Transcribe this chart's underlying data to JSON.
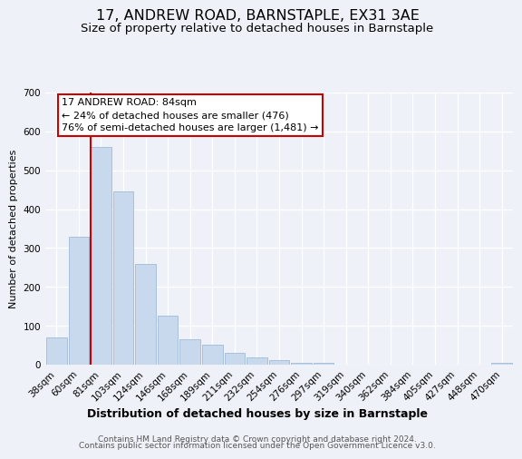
{
  "title": "17, ANDREW ROAD, BARNSTAPLE, EX31 3AE",
  "subtitle": "Size of property relative to detached houses in Barnstaple",
  "xlabel": "Distribution of detached houses by size in Barnstaple",
  "ylabel": "Number of detached properties",
  "bar_labels": [
    "38sqm",
    "60sqm",
    "81sqm",
    "103sqm",
    "124sqm",
    "146sqm",
    "168sqm",
    "189sqm",
    "211sqm",
    "232sqm",
    "254sqm",
    "276sqm",
    "297sqm",
    "319sqm",
    "340sqm",
    "362sqm",
    "384sqm",
    "405sqm",
    "427sqm",
    "448sqm",
    "470sqm"
  ],
  "bar_values": [
    70,
    330,
    560,
    445,
    258,
    125,
    65,
    52,
    30,
    18,
    12,
    5,
    4,
    0,
    0,
    0,
    0,
    0,
    0,
    0,
    5
  ],
  "bar_color": "#c8d9ed",
  "bar_edge_color": "#a8c0da",
  "property_line_index": 2,
  "property_line_color": "#cc0000",
  "annotation_title": "17 ANDREW ROAD: 84sqm",
  "annotation_line1": "← 24% of detached houses are smaller (476)",
  "annotation_line2": "76% of semi-detached houses are larger (1,481) →",
  "annotation_box_color": "#cc0000",
  "ylim": [
    0,
    700
  ],
  "yticks": [
    0,
    100,
    200,
    300,
    400,
    500,
    600,
    700
  ],
  "footer1": "Contains HM Land Registry data © Crown copyright and database right 2024.",
  "footer2": "Contains public sector information licensed under the Open Government Licence v3.0.",
  "background_color": "#eef2f8",
  "plot_background": "#eef2f8",
  "title_fontsize": 11.5,
  "subtitle_fontsize": 9.5,
  "xlabel_fontsize": 9,
  "ylabel_fontsize": 8
}
